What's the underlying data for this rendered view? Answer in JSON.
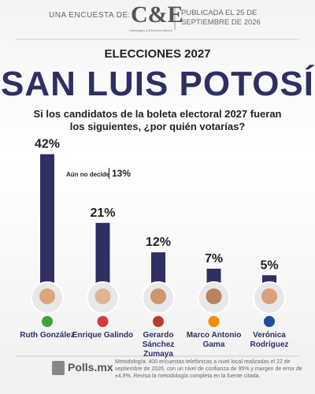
{
  "header": {
    "intro": "UNA ENCUESTA DE:",
    "logo": "C&E",
    "logo_sub": "Campaigns & Elections México",
    "published": "PUBLICADA EL 25 DE SEPTIEMBRE DE 2026"
  },
  "chart_data": {
    "type": "bar",
    "kicker": "ELECCIONES 2027",
    "title": "SAN LUIS POTOSÍ",
    "subtitle": "Si los candidatos de la boleta electoral 2027 fueran los siguientes, ¿por quién votarías?",
    "categories": [
      "Ruth González",
      "Enrique Galindo",
      "Gerardo Sánchez Zumaya",
      "Marco Antonio Gama",
      "Verónica Rodríguez"
    ],
    "values": [
      42,
      21,
      12,
      7,
      5
    ],
    "value_labels": [
      "42%",
      "21%",
      "12%",
      "7%",
      "5%"
    ],
    "color": "#2e3063",
    "undecided_label": "Aún no decide",
    "undecided_value": "13%"
  },
  "footer": {
    "brand": "Polls.mx",
    "methodology": "Metodología: 400 encuestas telefónicas a nivel local realizadas el 22 de septiembre de 2026, con un nivel de confianza de 95% y margen de error de ±4.9%. Revisa la metodología completa en la fuente citada."
  }
}
